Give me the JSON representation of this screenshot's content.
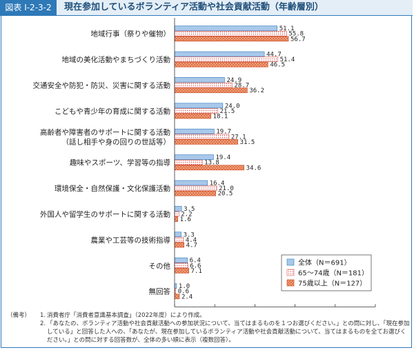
{
  "header": {
    "figure_label": "図表 I-2-3-2",
    "title": "現在参加しているボランティア活動や社会貢献活動（年齢層別）"
  },
  "colors": {
    "frame": "#2e79b8",
    "series_all": "#a8c8ea",
    "series_65_74": "#ffffff",
    "series_75_plus": "#f0a07a"
  },
  "chart_data": {
    "type": "bar",
    "orientation": "horizontal",
    "categories": [
      "地域行事（祭りや催物）",
      "地域の美化活動やまちづくり活動",
      "交通安全や防犯・防災、災害に関する活動",
      "こどもや青少年の育成に関する活動",
      "高齢者や障害者のサポートに関する活動\n（話し相手や身の回りの世話等）",
      "趣味やスポーツ、学習等の指導",
      "環境保全・自然保護・文化保護活動",
      "外国人や留学生のサポートに関する活動",
      "農業や工芸等の技術指導",
      "その他",
      "無回答"
    ],
    "series": [
      {
        "name": "全体（N＝691）",
        "values": [
          51.1,
          44.7,
          24.9,
          24.0,
          19.7,
          19.4,
          16.4,
          3.5,
          3.3,
          6.4,
          1.0
        ]
      },
      {
        "name": "65～74歳（N＝181）",
        "values": [
          55.8,
          51.4,
          28.7,
          21.5,
          27.1,
          13.8,
          21.0,
          2.2,
          4.4,
          6.6,
          0.6
        ]
      },
      {
        "name": "75歳以上（N＝127）",
        "values": [
          56.7,
          46.5,
          36.2,
          18.1,
          31.5,
          34.6,
          20.5,
          1.6,
          4.7,
          7.1,
          2.4
        ]
      }
    ],
    "value_labels": [
      [
        "51.1",
        "44.7",
        "24.9",
        "24.0",
        "19.7",
        "19.4",
        "16.4",
        "3.5",
        "3.3",
        "6.4",
        "1.0"
      ],
      [
        "55.8",
        "51.4",
        "28.7",
        "21.5",
        "27.1",
        "13.8",
        "21.0",
        "2.2",
        "4.4",
        "6.6",
        "0.6"
      ],
      [
        "56.7",
        "46.5",
        "36.2",
        "18.1",
        "31.5",
        "34.6",
        "20.5",
        "1.6",
        "4.7",
        "7.1",
        "2.4"
      ]
    ],
    "xlim": [
      0,
      100
    ],
    "xticks": [
      "0",
      "20",
      "40",
      "60",
      "80",
      "100"
    ],
    "x_unit": "（%）",
    "legend_position": "bottom-right",
    "grid": false
  },
  "notes": {
    "label": "（備考）",
    "items": [
      {
        "num": "1.",
        "text": "消費者庁「消費者意識基本調査」（2022年度）により作成。"
      },
      {
        "num": "2.",
        "text": "「あなたの、ボランティア活動や社会貢献活動への参加状況について、当てはまるものを１つお選びください。」との問に対し、「現在参加している」と回答した人への、「あなたが、現在参加しているボランティア活動や社会貢献活動について、当てはまるものを全てお選びください。」との問に対する回答数が、全体の多い順に表示（複数回答）。"
      }
    ]
  }
}
